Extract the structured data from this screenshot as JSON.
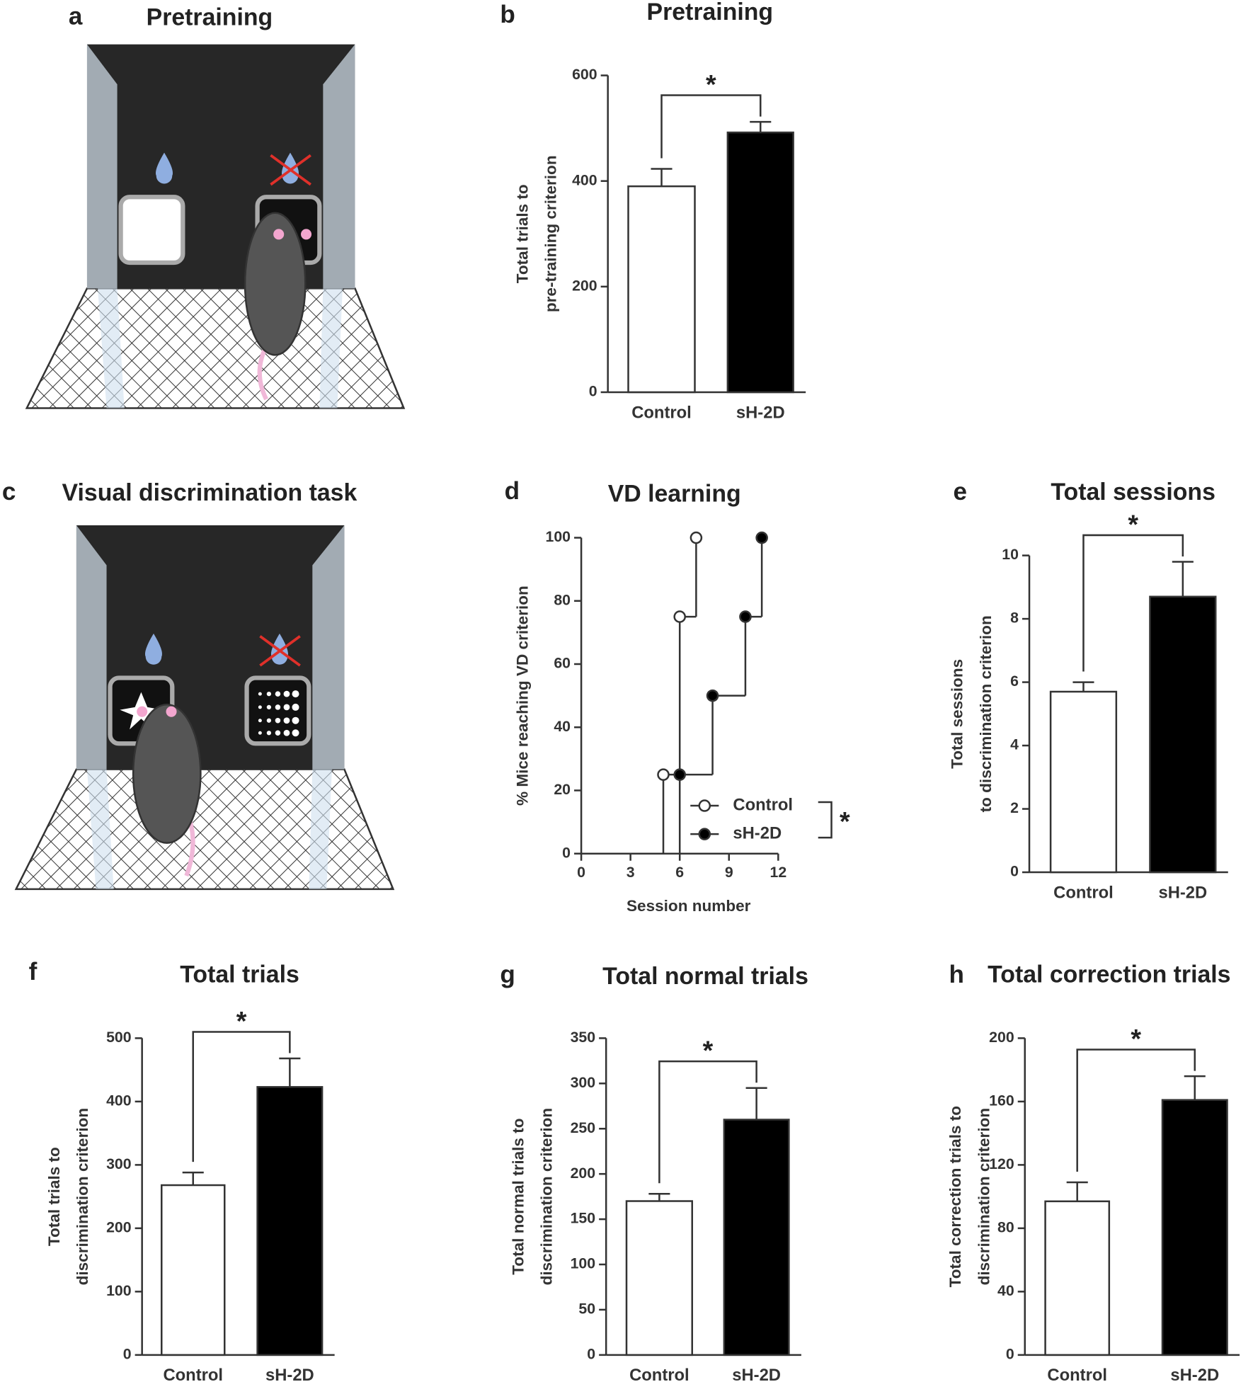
{
  "illustrations": [
    {
      "label": "a",
      "title": "Pretraining"
    },
    {
      "label": "c",
      "title": "Visual discrimination task"
    }
  ],
  "chart_data": [
    {
      "type": "bar",
      "label": "b",
      "title": "Pretraining",
      "ylabel": [
        "Total trials to",
        "pre-training criterion"
      ],
      "categories": [
        "Control",
        "sH-2D"
      ],
      "values": [
        390,
        492
      ],
      "errors": [
        33,
        20
      ],
      "colors": [
        "#ffffff",
        "#000000"
      ],
      "ylim": [
        0,
        600
      ],
      "yticks": [
        0,
        200,
        400,
        600
      ],
      "significance": "*"
    },
    {
      "type": "line",
      "step": true,
      "label": "d",
      "title": "VD learning",
      "xlabel": "Session number",
      "ylabel": [
        "% Mice reaching VD criterion"
      ],
      "xlim": [
        0,
        12
      ],
      "xticks": [
        0,
        3,
        6,
        9,
        12
      ],
      "ylim": [
        0,
        100
      ],
      "yticks": [
        0,
        20,
        40,
        60,
        80,
        100
      ],
      "series": [
        {
          "name": "Control",
          "marker_fill": "#ffffff",
          "x": [
            5,
            6,
            7
          ],
          "values": [
            25,
            75,
            100
          ]
        },
        {
          "name": "sH-2D",
          "marker_fill": "#000000",
          "x": [
            6,
            8,
            10,
            11
          ],
          "values": [
            25,
            50,
            75,
            100
          ]
        }
      ],
      "significance": "*"
    },
    {
      "type": "bar",
      "label": "e",
      "title": "Total sessions",
      "ylabel": [
        "Total sessions",
        "to discrimination criterion"
      ],
      "categories": [
        "Control",
        "sH-2D"
      ],
      "values": [
        5.7,
        8.7
      ],
      "errors": [
        0.3,
        1.1
      ],
      "colors": [
        "#ffffff",
        "#000000"
      ],
      "ylim": [
        0,
        10
      ],
      "yticks": [
        0,
        2,
        4,
        6,
        8,
        10
      ],
      "significance": "*"
    },
    {
      "type": "bar",
      "label": "f",
      "title": "Total trials",
      "ylabel": [
        "Total trials to",
        "discrimination criterion"
      ],
      "categories": [
        "Control",
        "sH-2D"
      ],
      "values": [
        268,
        423
      ],
      "errors": [
        20,
        45
      ],
      "colors": [
        "#ffffff",
        "#000000"
      ],
      "ylim": [
        0,
        500
      ],
      "yticks": [
        0,
        100,
        200,
        300,
        400,
        500
      ],
      "significance": "*"
    },
    {
      "type": "bar",
      "label": "g",
      "title": "Total normal trials",
      "ylabel": [
        "Total normal trials to",
        "discrimination criterion"
      ],
      "categories": [
        "Control",
        "sH-2D"
      ],
      "values": [
        170,
        260
      ],
      "errors": [
        8,
        35
      ],
      "colors": [
        "#ffffff",
        "#000000"
      ],
      "ylim": [
        0,
        350
      ],
      "yticks": [
        0,
        50,
        100,
        150,
        200,
        250,
        300,
        350
      ],
      "significance": "*"
    },
    {
      "type": "bar",
      "label": "h",
      "title": "Total correction trials",
      "ylabel": [
        "Total correction trials to",
        "discrimination criterion"
      ],
      "categories": [
        "Control",
        "sH-2D"
      ],
      "values": [
        97,
        161
      ],
      "errors": [
        12,
        15
      ],
      "colors": [
        "#ffffff",
        "#000000"
      ],
      "ylim": [
        0,
        200
      ],
      "yticks": [
        0,
        40,
        80,
        120,
        160,
        200
      ],
      "significance": "*"
    }
  ]
}
